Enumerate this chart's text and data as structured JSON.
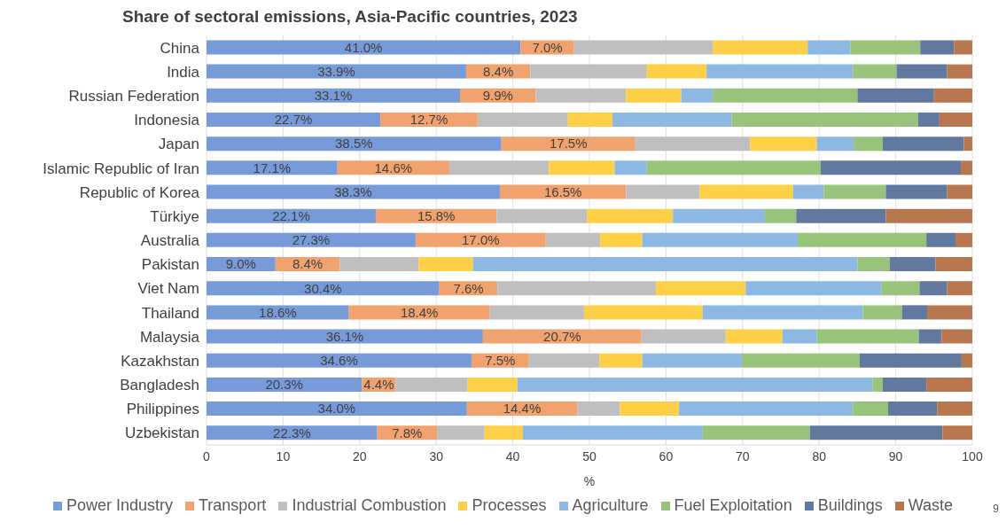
{
  "chart_data": {
    "type": "bar",
    "orientation": "horizontal",
    "stacked": true,
    "title": "Share of sectoral emissions, Asia-Pacific countries, 2023",
    "xlabel": "%",
    "categories": [
      "China",
      "India",
      "Russian Federation",
      "Indonesia",
      "Japan",
      "Islamic Republic of Iran",
      "Republic of Korea",
      "Türkiye",
      "Australia",
      "Pakistan",
      "Viet Nam",
      "Thailand",
      "Malaysia",
      "Kazakhstan",
      "Bangladesh",
      "Philippines",
      "Uzbekistan"
    ],
    "series": [
      {
        "name": "Power Industry",
        "color": "#779ad8",
        "values": [
          41.0,
          33.9,
          33.1,
          22.7,
          38.5,
          17.1,
          38.3,
          22.1,
          27.3,
          9.0,
          30.4,
          18.6,
          36.1,
          34.6,
          20.3,
          34.0,
          22.3
        ],
        "value_labels": [
          "41.0%",
          "33.9%",
          "33.1%",
          "22.7%",
          "38.5%",
          "17.1%",
          "38.3%",
          "22.1%",
          "27.3%",
          "9.0%",
          "30.4%",
          "18.6%",
          "36.1%",
          "34.6%",
          "20.3%",
          "34.0%",
          "22.3%"
        ]
      },
      {
        "name": "Transport",
        "color": "#f0a36e",
        "values": [
          7.0,
          8.4,
          9.9,
          12.7,
          17.5,
          14.6,
          16.5,
          15.8,
          17.0,
          8.4,
          7.6,
          18.4,
          20.7,
          7.5,
          4.4,
          14.4,
          7.8
        ],
        "value_labels": [
          "7.0%",
          "8.4%",
          "9.9%",
          "12.7%",
          "17.5%",
          "14.6%",
          "16.5%",
          "15.8%",
          "17.0%",
          "8.4%",
          "7.6%",
          "18.4%",
          "20.7%",
          "7.5%",
          "4.4%",
          "14.4%",
          "7.8%"
        ]
      },
      {
        "name": "Industrial Combustion",
        "color": "#bfbfbf",
        "values": [
          18.1,
          15.2,
          11.8,
          11.8,
          15.0,
          13.0,
          9.6,
          11.8,
          7.1,
          10.3,
          20.7,
          12.3,
          11.0,
          9.2,
          9.4,
          5.6,
          6.2
        ]
      },
      {
        "name": "Processes",
        "color": "#fdd048",
        "values": [
          12.4,
          7.8,
          7.2,
          5.8,
          8.7,
          8.6,
          12.2,
          11.2,
          5.5,
          7.1,
          11.7,
          15.5,
          7.4,
          5.6,
          6.5,
          7.7,
          5.0
        ]
      },
      {
        "name": "Agriculture",
        "color": "#8db8e2",
        "values": [
          5.6,
          19.1,
          4.1,
          15.6,
          4.8,
          4.2,
          4.0,
          12.0,
          20.3,
          50.2,
          17.7,
          20.9,
          4.5,
          13.0,
          46.4,
          22.7,
          23.5
        ]
      },
      {
        "name": "Fuel Exploitation",
        "color": "#97c47a",
        "values": [
          9.1,
          5.7,
          18.9,
          24.3,
          3.8,
          22.7,
          8.1,
          4.1,
          16.8,
          4.2,
          5.0,
          5.1,
          13.3,
          15.4,
          1.3,
          4.6,
          14.0
        ]
      },
      {
        "name": "Buildings",
        "color": "#62799f",
        "values": [
          4.4,
          6.6,
          10.0,
          2.8,
          10.6,
          18.3,
          8.0,
          11.7,
          3.8,
          6.0,
          3.6,
          3.3,
          3.0,
          13.3,
          5.7,
          6.4,
          17.3
        ]
      },
      {
        "name": "Waste",
        "color": "#b8774f",
        "values": [
          2.4,
          3.3,
          5.0,
          4.3,
          1.1,
          1.5,
          3.3,
          11.3,
          2.2,
          4.8,
          3.3,
          5.9,
          4.0,
          1.4,
          6.0,
          4.6,
          3.9
        ]
      }
    ],
    "xlim": [
      0,
      100
    ],
    "xticks": [
      0,
      10,
      20,
      30,
      40,
      50,
      60,
      70,
      80,
      90,
      100
    ],
    "grid": "x",
    "legend": "bottom",
    "annotations": [
      "9"
    ]
  }
}
